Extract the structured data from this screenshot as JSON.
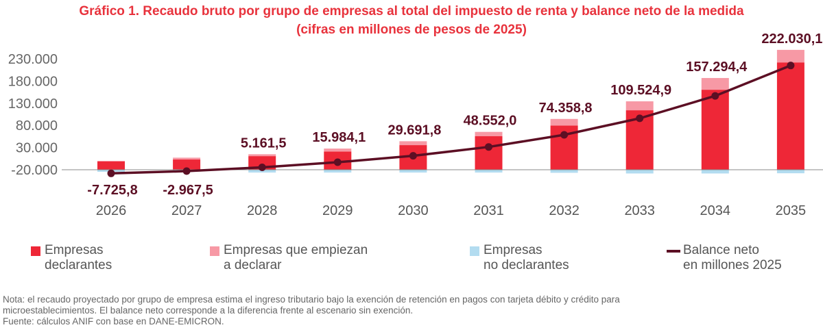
{
  "title": {
    "line1": "Gráfico 1. Recaudo bruto por grupo de empresas al total del impuesto de renta y balance neto de la medida",
    "line2": "(cifras en millones de pesos de 2025)"
  },
  "chart_data": {
    "type": "bar",
    "stacked": true,
    "categories": [
      "2026",
      "2027",
      "2028",
      "2029",
      "2030",
      "2031",
      "2032",
      "2033",
      "2034",
      "2035"
    ],
    "yticks": [
      "230.000",
      "180.000",
      "130.000",
      "80.000",
      "30.000",
      "-20.000"
    ],
    "ytick_values": [
      230000,
      180000,
      130000,
      80000,
      30000,
      -20000
    ],
    "ylim": [
      -20000,
      250000
    ],
    "grid": false,
    "legend_placement": "bottom",
    "series": [
      {
        "name": "Empresas declarantes",
        "kind": "bar",
        "color": "#EE2737",
        "values": [
          17500,
          21800,
          29000,
          38800,
          52400,
          71400,
          94200,
          126700,
          170400,
          228600
        ]
      },
      {
        "name": "Empresas que empiezan a declarar",
        "kind": "bar",
        "color": "#F799A5",
        "values": [
          1500,
          3900,
          4000,
          6300,
          8300,
          9200,
          14000,
          19000,
          25000,
          26700
        ]
      },
      {
        "name": "Empresas no declarantes",
        "kind": "bar",
        "color": "#B3DCF0",
        "values": [
          -4400,
          -4000,
          -6000,
          -6000,
          -6000,
          -6000,
          -6500,
          -8000,
          -8000,
          -7500
        ]
      },
      {
        "name": "Balance neto en millones 2025",
        "kind": "line",
        "color": "#5C0F24",
        "values": [
          -7725.8,
          -2967.5,
          5161.5,
          15984.1,
          29691.8,
          48552.0,
          74358.8,
          109524.9,
          157294.4,
          222030.1
        ],
        "labels": [
          "-7.725,8",
          "-2.967,5",
          "5.161,5",
          "15.984,1",
          "29.691,8",
          "48.552,0",
          "74.358,8",
          "109.524,9",
          "157.294,4",
          "222.030,1"
        ]
      }
    ]
  },
  "legend": [
    {
      "line1": "Empresas",
      "line2": "declarantes",
      "color": "#EE2737"
    },
    {
      "line1": "Empresas que empiezan",
      "line2": "a declarar",
      "color": "#F799A5"
    },
    {
      "line1": "Empresas",
      "line2": "no declarantes",
      "color": "#B3DCF0"
    },
    {
      "line1": "Balance neto",
      "line2": "en millones 2025",
      "color": "#5C0F24"
    }
  ],
  "note": {
    "line1": "Nota: el recaudo proyectado por grupo de empresa estima el ingreso tributario bajo la exención de retención en pagos con tarjeta débito y crédito para",
    "line2": "microestablecimientos. El balance neto corresponde a la diferencia frente al escenario sin exención.",
    "source": "Fuente: cálculos ANIF con base en DANE-EMICRON."
  }
}
